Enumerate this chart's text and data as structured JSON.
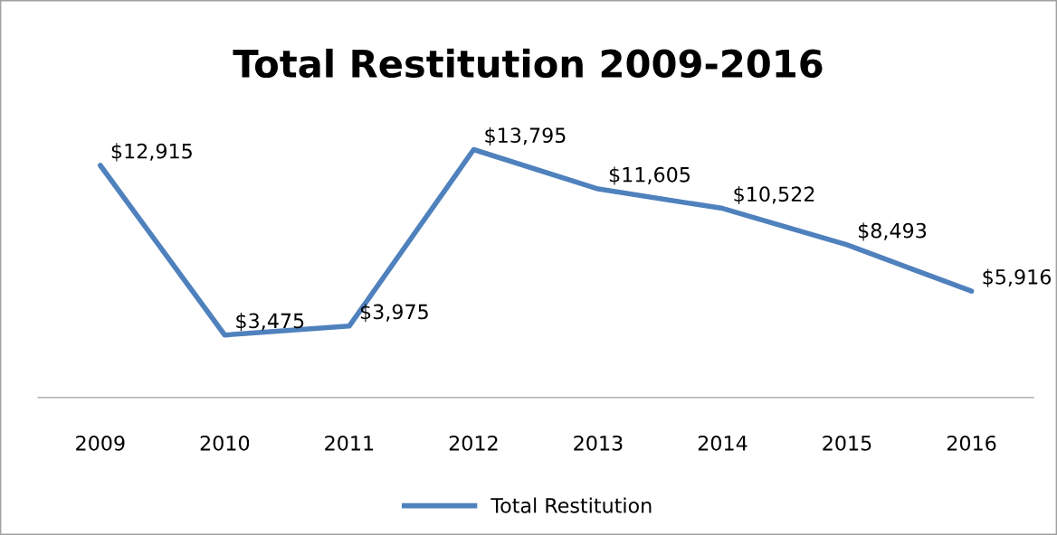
{
  "chart_data": {
    "type": "line",
    "title": "Total Restitution 2009-2016",
    "categories": [
      "2009",
      "2010",
      "2011",
      "2012",
      "2013",
      "2014",
      "2015",
      "2016"
    ],
    "series": [
      {
        "name": "Total Restitution",
        "color": "#4f81bd",
        "values": [
          12915,
          3475,
          3975,
          13795,
          11605,
          10522,
          8493,
          5916
        ],
        "value_labels": [
          "$12,915",
          "$3,475",
          "$3,975",
          "$13,795",
          "$11,605",
          "$10,522",
          "$8,493",
          "$5,916"
        ]
      }
    ],
    "data_labels": true,
    "legend": "bottom",
    "grid": false,
    "marker": "none",
    "line_style": "solid"
  }
}
